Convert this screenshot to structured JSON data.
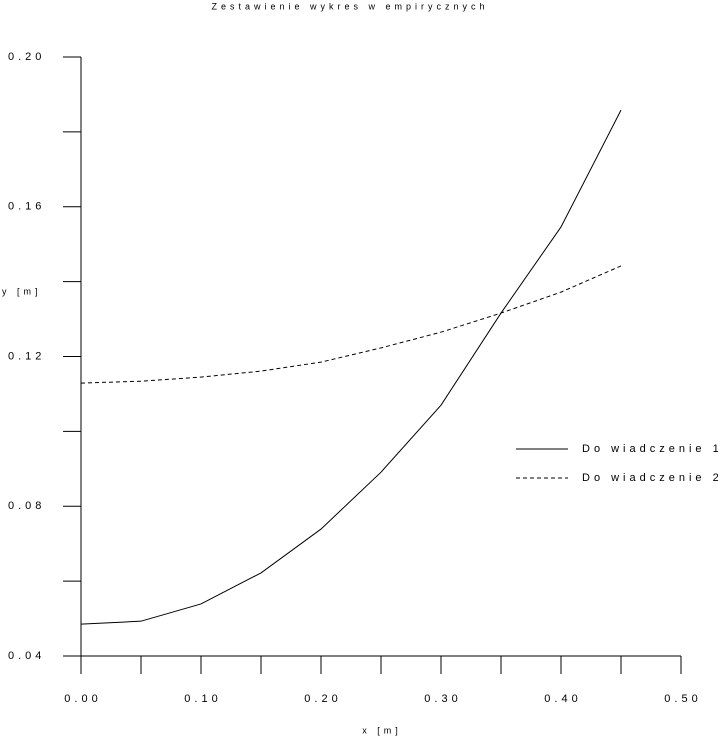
{
  "chart_data": {
    "type": "line",
    "title": "Zestawienie wykres w empirycznych",
    "x_label": "x [m]",
    "y_label": "y [m]",
    "x": [
      0,
      0.05,
      0.1,
      0.15,
      0.2,
      0.25,
      0.3,
      0.35,
      0.4,
      0.45
    ],
    "series": [
      {
        "name": "Do wiadczenie 1",
        "color": "#000000",
        "linestyle": "solid",
        "values": [
          0.0485,
          0.0493,
          0.0539,
          0.0622,
          0.0739,
          0.0891,
          0.107,
          0.1316,
          0.1546,
          0.1858
        ]
      },
      {
        "name": "Do wiadczenie 2",
        "color": "#000000",
        "linestyle": "dashed",
        "values": [
          0.1129,
          0.1134,
          0.1145,
          0.1161,
          0.1185,
          0.1223,
          0.1265,
          0.1316,
          0.1372,
          0.1442
        ]
      }
    ],
    "xlim": [
      0,
      0.5
    ],
    "ylim": [
      0.04,
      0.2
    ],
    "xticks": [
      {
        "value": 0,
        "label": "0.00"
      },
      {
        "value": 0.1,
        "label": "0.10"
      },
      {
        "value": 0.2,
        "label": "0.20"
      },
      {
        "value": 0.3,
        "label": "0.30"
      },
      {
        "value": 0.4,
        "label": "0.40"
      },
      {
        "value": 0.5,
        "label": "0.50"
      }
    ],
    "yticks": [
      {
        "value": 0.04,
        "label": "0.04"
      },
      {
        "value": 0.08,
        "label": "0.08"
      },
      {
        "value": 0.12,
        "label": "0.12"
      },
      {
        "value": 0.16,
        "label": "0.16"
      },
      {
        "value": 0.2,
        "label": "0.20"
      }
    ],
    "x_minor_ticks": [
      0.05,
      0.15,
      0.25,
      0.35,
      0.45
    ],
    "y_minor_ticks": [
      0.06,
      0.1,
      0.14,
      0.18
    ],
    "grid": false,
    "legend_position": "right"
  }
}
